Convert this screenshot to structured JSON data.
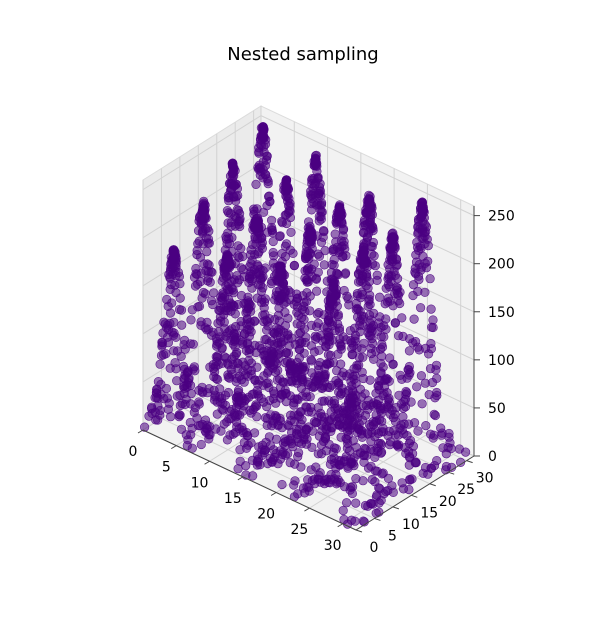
{
  "chart_data": {
    "type": "scatter",
    "projection": "3d",
    "title": "Nested sampling",
    "xlabel": "",
    "ylabel": "",
    "zlabel": "",
    "xlim": [
      0,
      32
    ],
    "ylim": [
      0,
      32
    ],
    "zlim": [
      0,
      260
    ],
    "x_ticks": [
      "0",
      "5",
      "10",
      "15",
      "20",
      "25",
      "30"
    ],
    "y_ticks": [
      "0",
      "5",
      "10",
      "15",
      "20",
      "25",
      "30"
    ],
    "z_ticks": [
      "0",
      "50",
      "100",
      "150",
      "200",
      "250"
    ],
    "grid": true,
    "marker_color": "#4b0082",
    "marker_alpha": 0.55,
    "surface": "Himmelblau-like egg-crate of 16 peaks, z from ~0 to ~250",
    "peaks": [
      {
        "x": 3,
        "y": 3,
        "z": 180
      },
      {
        "x": 3,
        "y": 11,
        "z": 210
      },
      {
        "x": 3,
        "y": 19,
        "z": 230
      },
      {
        "x": 3,
        "y": 27,
        "z": 250
      },
      {
        "x": 11,
        "y": 3,
        "z": 200
      },
      {
        "x": 11,
        "y": 11,
        "z": 220
      },
      {
        "x": 11,
        "y": 19,
        "z": 240
      },
      {
        "x": 11,
        "y": 27,
        "z": 245
      },
      {
        "x": 19,
        "y": 3,
        "z": 215
      },
      {
        "x": 19,
        "y": 11,
        "z": 235
      },
      {
        "x": 19,
        "y": 19,
        "z": 240
      },
      {
        "x": 19,
        "y": 27,
        "z": 230
      },
      {
        "x": 27,
        "y": 3,
        "z": 225
      },
      {
        "x": 27,
        "y": 11,
        "z": 240
      },
      {
        "x": 27,
        "y": 19,
        "z": 235
      },
      {
        "x": 27,
        "y": 27,
        "z": 250
      }
    ]
  }
}
